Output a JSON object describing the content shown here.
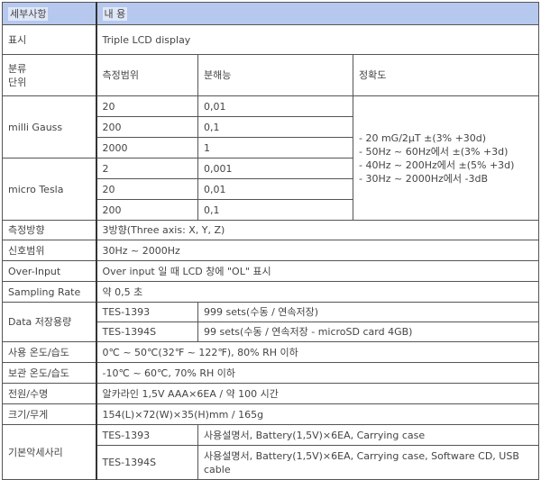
{
  "header": {
    "col1": "세부사항",
    "col2": "내 용"
  },
  "display": {
    "label": "표시",
    "value": "Triple LCD display"
  },
  "classification": {
    "label_line1": "분류",
    "label_line2": "단위",
    "range": "측정범위",
    "resolution": "분해능",
    "accuracy": "정확도"
  },
  "milli_gauss": {
    "label": "milli Gauss",
    "rows": [
      {
        "range": "20",
        "resolution": "0,01"
      },
      {
        "range": "200",
        "resolution": "0,1"
      },
      {
        "range": "2000",
        "resolution": "1"
      }
    ]
  },
  "micro_tesla": {
    "label": "micro Tesla",
    "rows": [
      {
        "range": "2",
        "resolution": "0,001"
      },
      {
        "range": "20",
        "resolution": "0,01"
      },
      {
        "range": "200",
        "resolution": "0,1"
      }
    ]
  },
  "accuracy_lines": [
    "- 20 mG/2μT ±(3% +30d)",
    "- 50Hz ~ 60Hz에서 ±(3% +3d)",
    "- 40Hz ~ 200Hz에서 ±(5% +3d)",
    "- 30Hz ~ 2000Hz에서 -3dB"
  ],
  "specs": [
    {
      "label": "측정방향",
      "value": "3방향(Three axis: X, Y, Z)"
    },
    {
      "label": "신호범위",
      "value": "30Hz ~ 2000Hz"
    },
    {
      "label": "Over-Input",
      "value": "Over input 일 때 LCD 창에 \"OL\" 표시"
    },
    {
      "label": "Sampling Rate",
      "value": "약 0,5 초"
    }
  ],
  "data_storage": {
    "label": "Data 저장용량",
    "rows": [
      {
        "model": "TES-1393",
        "value": "999 sets(수동 / 연속저장)"
      },
      {
        "model": "TES-1394S",
        "value": "99 sets(수동 / 연속저장 - microSD card 4GB)"
      }
    ]
  },
  "specs2": [
    {
      "label": "사용 온도/습도",
      "value": "0℃ ~ 50℃(32℉ ~ 122℉), 80% RH 이하"
    },
    {
      "label": "보관 온도/습도",
      "value": "-10℃ ~ 60℃, 70% RH 이하"
    },
    {
      "label": "전원/수명",
      "value": "알카라인 1,5V AAA×6EA / 약 100 시간"
    },
    {
      "label": "크기/무게",
      "value": "154(L)×72(W)×35(H)mm / 165g"
    }
  ],
  "accessories": {
    "label": "기본악세사리",
    "rows": [
      {
        "model": "TES-1393",
        "value": "사용설명서, Battery(1,5V)×6EA, Carrying case"
      },
      {
        "model": "TES-1394S",
        "value": "사용설명서, Battery(1,5V)×6EA, Carrying case, Software CD, USB cable"
      }
    ]
  },
  "colors": {
    "header_bg": "#b6c8ee",
    "border": "#555555"
  }
}
